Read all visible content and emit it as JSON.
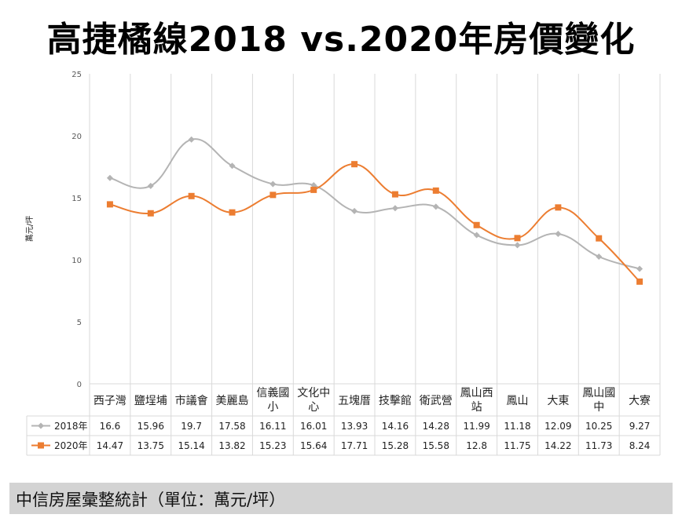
{
  "title": "高捷橘線2018 vs.2020年房價變化",
  "footer": "中信房屋彙整統計（單位：萬元/坪）",
  "chart_data": {
    "type": "line",
    "title": "高捷橘線2018 vs.2020年房價變化",
    "ylabel": "萬元/坪",
    "ylim": [
      0,
      25
    ],
    "yticks": [
      0,
      5,
      10,
      15,
      20,
      25
    ],
    "grid": "vertical",
    "legend": "data-table",
    "categories": [
      [
        "西子灣"
      ],
      [
        "鹽埕埔"
      ],
      [
        "市議會"
      ],
      [
        "美麗島"
      ],
      [
        "信義國",
        "小"
      ],
      [
        "文化中",
        "心"
      ],
      [
        "五塊厝"
      ],
      [
        "技擊館"
      ],
      [
        "衛武營"
      ],
      [
        "鳳山西",
        "站"
      ],
      [
        "鳳山"
      ],
      [
        "大東"
      ],
      [
        "鳳山國",
        "中"
      ],
      [
        "大寮"
      ]
    ],
    "series": [
      {
        "name": "2018年",
        "color": "#b4b4b4",
        "marker": "diamond",
        "values": [
          16.6,
          15.96,
          19.7,
          17.58,
          16.11,
          16.01,
          13.93,
          14.16,
          14.28,
          11.99,
          11.18,
          12.09,
          10.25,
          9.27
        ],
        "labels": [
          "16.6",
          "15.96",
          "19.7",
          "17.58",
          "16.11",
          "16.01",
          "13.93",
          "14.16",
          "14.28",
          "11.99",
          "11.18",
          "12.09",
          "10.25",
          "9.27"
        ]
      },
      {
        "name": "2020年",
        "color": "#ec7d31",
        "marker": "square",
        "values": [
          14.47,
          13.75,
          15.14,
          13.82,
          15.23,
          15.64,
          17.71,
          15.28,
          15.58,
          12.8,
          11.75,
          14.22,
          11.73,
          8.24
        ],
        "labels": [
          "14.47",
          "13.75",
          "15.14",
          "13.82",
          "15.23",
          "15.64",
          "17.71",
          "15.28",
          "15.58",
          "12.8",
          "11.75",
          "14.22",
          "11.73",
          "8.24"
        ]
      }
    ]
  }
}
